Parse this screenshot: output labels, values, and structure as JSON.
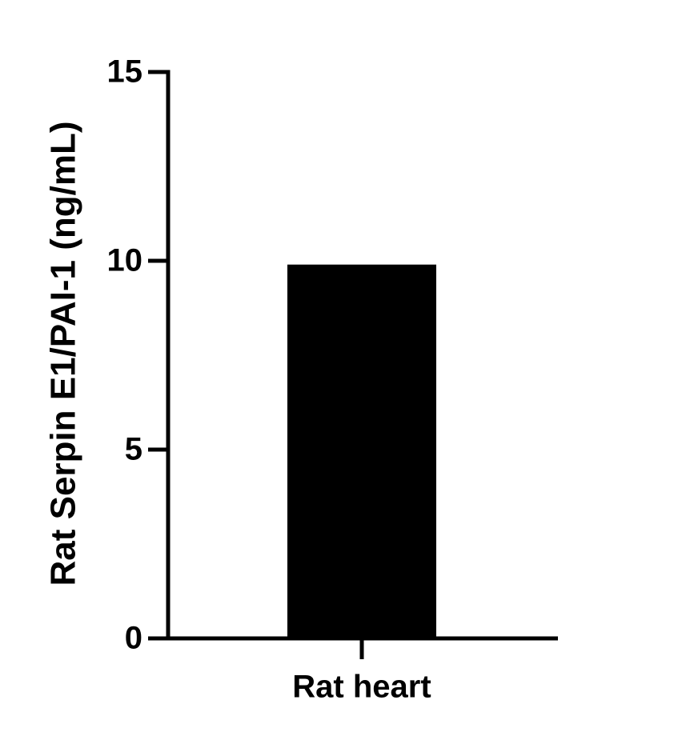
{
  "chart_data": {
    "type": "bar",
    "y_label": "Rat Serpin E1/PAI-1 (ng/mL)",
    "categories": [
      "Rat heart"
    ],
    "values": [
      9.9
    ],
    "color": "#000000",
    "ylim": [
      0,
      15
    ],
    "yticks": [
      0,
      5,
      10,
      15
    ]
  }
}
